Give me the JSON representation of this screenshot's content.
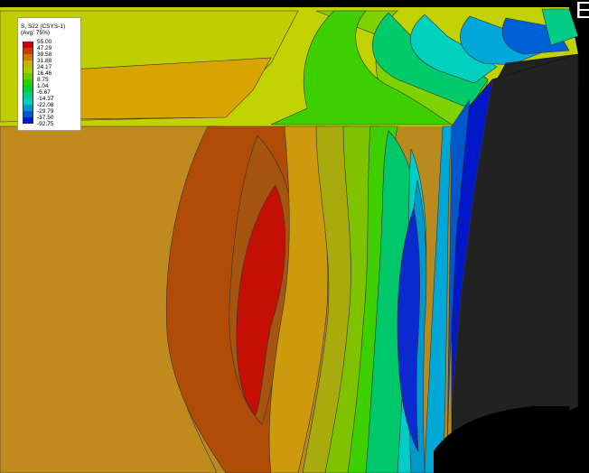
{
  "legend": {
    "title_line1": "S, S22 (CSYS-1)",
    "title_line2": "(Avg: 75%)",
    "levels": [
      "55.00",
      "47.29",
      "39.58",
      "31.88",
      "24.17",
      "16.46",
      "8.75",
      "1.04",
      "-6.67",
      "-14.37",
      "-22.08",
      "-29.79",
      "-37.50",
      "-92.75"
    ],
    "colors": [
      "#cc0000",
      "#cc3a00",
      "#cc7a00",
      "#c8b400",
      "#a8cc00",
      "#6ecc00",
      "#2ecc00",
      "#00cc38",
      "#00cc88",
      "#00ccc8",
      "#0098cc",
      "#0058cc",
      "#0018c8",
      "#000088"
    ]
  },
  "corner_text": "E",
  "contour_colors": {
    "dark_orange": "#b14b08",
    "amber": "#c08a1e",
    "light_orange": "#cc9a0c",
    "olive": "#a8aa0e",
    "yellow_green": "#c2d200",
    "red": "#c40f05",
    "black_region": "#222222"
  }
}
